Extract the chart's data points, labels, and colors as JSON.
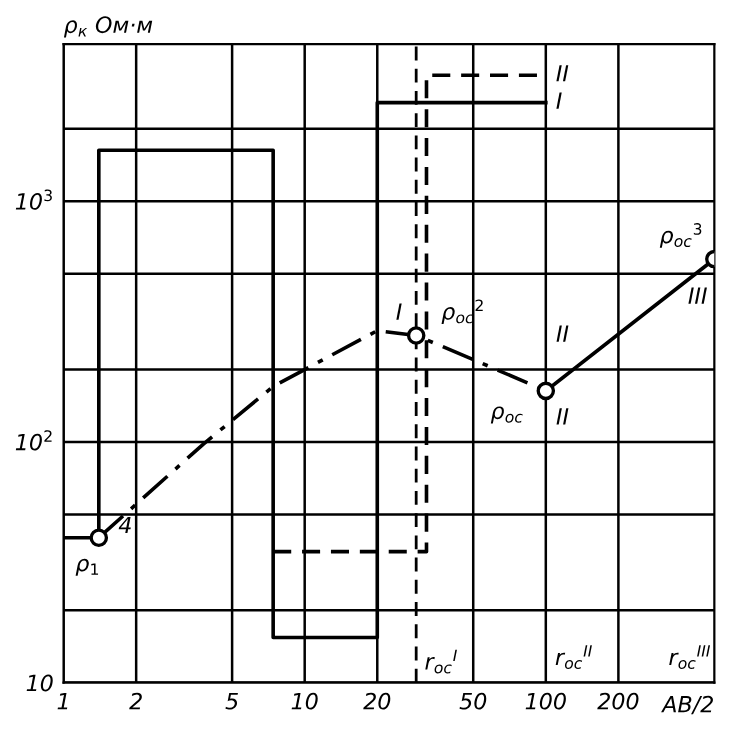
{
  "chart_data": {
    "type": "line",
    "log": "xy",
    "ylabel": "ρ$_{к}$ Ом·м",
    "xlabel": "AB/2",
    "xlim": [
      1,
      500
    ],
    "ylim": [
      10,
      4500
    ],
    "xticks": [
      1,
      2,
      5,
      10,
      20,
      50,
      100,
      200
    ],
    "yticks": [
      {
        "value": 10,
        "label": "10"
      },
      {
        "value": 20,
        "label": null
      },
      {
        "value": 50,
        "label": null
      },
      {
        "value": 100,
        "label": "10$^{2}$"
      },
      {
        "value": 200,
        "label": null
      },
      {
        "value": 500,
        "label": null
      },
      {
        "value": 1000,
        "label": "10$^{3}$"
      },
      {
        "value": 2000,
        "label": null
      }
    ],
    "grid": true,
    "legend": false,
    "series": [
      {
        "name": "I",
        "type": "step",
        "line_style": "solid",
        "color": "#000000",
        "x": [
          1,
          1.4,
          1.4,
          7.4,
          7.4,
          20,
          20,
          100
        ],
        "values": [
          40,
          40,
          1630,
          1630,
          15.4,
          15.4,
          2570,
          2570
        ]
      },
      {
        "name": "II",
        "type": "step",
        "line_style": "dashed",
        "color": "#000000",
        "x": [
          7.4,
          32,
          32,
          100
        ],
        "values": [
          35,
          35,
          3340,
          3340
        ]
      },
      {
        "type": "line",
        "line_style": "dashdot",
        "color": "#000000",
        "x": [
          1.4,
          3.8,
          7.4,
          20,
          29,
          50,
          100
        ],
        "values": [
          40,
          98,
          170,
          290,
          277,
          220,
          163
        ]
      },
      {
        "type": "line",
        "line_style": "solid",
        "color": "#000000",
        "x": [
          100,
          500
        ],
        "values": [
          163,
          575
        ]
      },
      {
        "type": "scatter",
        "marker": "circle",
        "color": "#000000",
        "x": [
          1.4,
          29,
          100,
          500
        ],
        "values": [
          40,
          277,
          163,
          575
        ]
      }
    ],
    "ref_lines": [
      {
        "axis": "x",
        "value": 29,
        "line_style": "dashed",
        "color": "#000000"
      }
    ],
    "annotations": [
      {
        "text": "4",
        "x": 1.4,
        "y": 40
      },
      {
        "text": "ρ$_{1}$",
        "x": 1.4,
        "y": 40
      },
      {
        "text": "I",
        "x": 29,
        "y": 277
      },
      {
        "text": "ρ$_{oc}$$^{2}$",
        "x": 29,
        "y": 277
      },
      {
        "text": "II",
        "x": 100,
        "y": 163
      },
      {
        "text": "ρ$_{oc}$",
        "x": 100,
        "y": 163
      },
      {
        "text": "II",
        "x": 100,
        "y": 163
      },
      {
        "text": "III",
        "x": 500,
        "y": 575
      },
      {
        "text": "ρ$_{oc}$$^{3}$",
        "x": 500,
        "y": 575
      },
      {
        "text": "r$_{oc}$$^{I}$",
        "x": 29,
        "y": 10
      },
      "r$_{oc}$$^{II}$",
      "r$_{oc}$$^{III}$"
    ]
  }
}
